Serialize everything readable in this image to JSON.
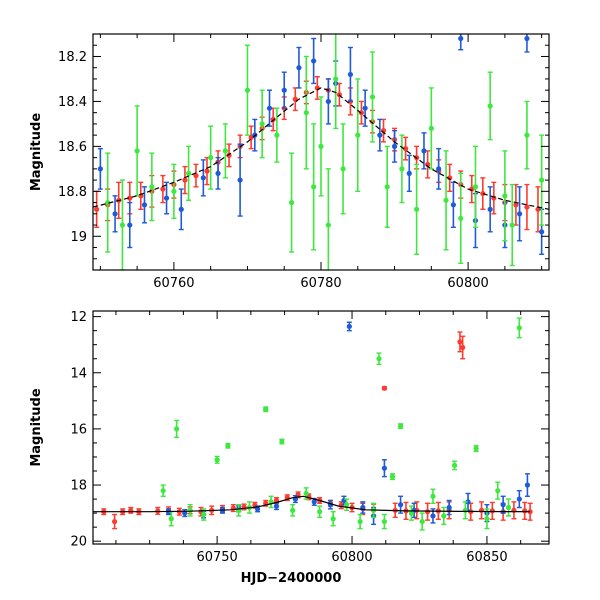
{
  "chart_data": [
    {
      "type": "scatter",
      "panel": "top",
      "xlabel": "",
      "ylabel": "Magnitude",
      "xlim": [
        60749,
        60811
      ],
      "ylim": [
        19.15,
        18.1
      ],
      "y_inverted": true,
      "x_ticks": [
        60760,
        60780,
        60800
      ],
      "x_tick_labels": [
        "60760",
        "60780",
        "60800"
      ],
      "y_ticks": [
        18.2,
        18.4,
        18.6,
        18.8,
        19.0
      ],
      "y_tick_labels": [
        "18.2",
        "18.4",
        "18.6",
        "18.8",
        "19"
      ],
      "model_curve": {
        "style": "dashed",
        "color": "#000000",
        "x": [
          60749,
          60755,
          60760,
          60765,
          60770,
          60774,
          60777,
          60780,
          60782,
          60785,
          60790,
          60795,
          60800,
          60805,
          60811
        ],
        "y": [
          18.87,
          18.82,
          18.76,
          18.69,
          18.58,
          18.47,
          18.39,
          18.34,
          18.36,
          18.44,
          18.58,
          18.7,
          18.79,
          18.84,
          18.88
        ]
      },
      "series": [
        {
          "color": "#ff3b30",
          "marker": "circle",
          "x": [
            60749.5,
            60751,
            60752.5,
            60754,
            60755.5,
            60757,
            60758.5,
            60760,
            60761.5,
            60763,
            60764.5,
            60766,
            60767.5,
            60769,
            60770.5,
            60772,
            60773.5,
            60775,
            60776.5,
            60778,
            60779.5,
            60781,
            60782.5,
            60784,
            60785.5,
            60787,
            60788.5,
            60790,
            60791.5,
            60793,
            60794.5,
            60796,
            60797.5,
            60799,
            60800.5,
            60802,
            60803.5,
            60805,
            60806.5,
            60808,
            60809.5
          ],
          "y": [
            18.88,
            18.86,
            18.84,
            18.83,
            18.82,
            18.8,
            18.79,
            18.77,
            18.75,
            18.73,
            18.71,
            18.67,
            18.64,
            18.6,
            18.56,
            18.52,
            18.48,
            18.43,
            18.39,
            18.36,
            18.34,
            18.35,
            18.37,
            18.4,
            18.45,
            18.49,
            18.53,
            18.57,
            18.61,
            18.65,
            18.68,
            18.71,
            18.74,
            18.77,
            18.79,
            18.81,
            18.83,
            18.85,
            18.86,
            18.87,
            18.88
          ],
          "err": [
            0.08,
            0.07,
            0.08,
            0.07,
            0.06,
            0.07,
            0.06,
            0.06,
            0.06,
            0.05,
            0.06,
            0.05,
            0.05,
            0.05,
            0.05,
            0.05,
            0.05,
            0.05,
            0.05,
            0.05,
            0.05,
            0.05,
            0.05,
            0.06,
            0.05,
            0.05,
            0.05,
            0.05,
            0.05,
            0.05,
            0.06,
            0.05,
            0.06,
            0.06,
            0.06,
            0.07,
            0.07,
            0.08,
            0.09,
            0.1,
            0.1
          ]
        },
        {
          "color": "#1e5bd8",
          "marker": "circle",
          "x": [
            60750,
            60752,
            60754,
            60756,
            60759,
            60761,
            60764,
            60766,
            60769,
            60771,
            60773,
            60775,
            60777,
            60779,
            60781,
            60782,
            60784,
            60786,
            60788,
            60790,
            60792,
            60794,
            60796,
            60798,
            60799,
            60801,
            60803,
            60805,
            60807,
            60808,
            60810
          ],
          "y": [
            18.7,
            18.9,
            18.95,
            18.86,
            18.83,
            18.88,
            18.74,
            18.72,
            18.75,
            18.55,
            18.43,
            18.35,
            18.25,
            18.22,
            18.4,
            18.32,
            18.28,
            18.43,
            18.55,
            18.6,
            18.72,
            18.62,
            18.7,
            18.86,
            18.12,
            18.93,
            18.88,
            18.95,
            18.9,
            18.12,
            18.98
          ],
          "err": [
            0.09,
            0.08,
            0.1,
            0.08,
            0.07,
            0.09,
            0.08,
            0.07,
            0.16,
            0.07,
            0.08,
            0.08,
            0.09,
            0.1,
            0.1,
            0.1,
            0.12,
            0.08,
            0.07,
            0.07,
            0.08,
            0.08,
            0.09,
            0.1,
            0.05,
            0.12,
            0.1,
            0.1,
            0.12,
            0.06,
            0.1
          ]
        },
        {
          "color": "#3ee83e",
          "marker": "circle",
          "x": [
            60751,
            60753,
            60755,
            60757,
            60760,
            60762,
            60765,
            60767,
            60770,
            60772,
            60774,
            60776,
            60778,
            60779,
            60780,
            60781,
            60782,
            60783,
            60785,
            60787,
            60789,
            60791,
            60793,
            60795,
            60797,
            60799,
            60801,
            60803,
            60805,
            60806,
            60808,
            60810
          ],
          "y": [
            18.85,
            18.95,
            18.62,
            18.78,
            18.8,
            18.72,
            18.65,
            18.62,
            18.35,
            18.5,
            18.55,
            18.85,
            18.45,
            18.78,
            18.6,
            18.95,
            18.3,
            18.7,
            18.55,
            18.38,
            18.78,
            18.7,
            18.88,
            18.52,
            18.84,
            18.92,
            18.78,
            18.42,
            18.82,
            18.95,
            18.55,
            18.75
          ],
          "err": [
            0.22,
            0.2,
            0.2,
            0.15,
            0.12,
            0.12,
            0.14,
            0.12,
            0.2,
            0.15,
            0.12,
            0.22,
            0.25,
            0.28,
            0.22,
            0.25,
            0.22,
            0.2,
            0.25,
            0.2,
            0.18,
            0.15,
            0.2,
            0.18,
            0.22,
            0.2,
            0.18,
            0.15,
            0.2,
            0.18,
            0.15,
            0.2
          ]
        }
      ]
    },
    {
      "type": "scatter",
      "panel": "bottom",
      "xlabel": "HJD−2400000",
      "ylabel": "Magnitude",
      "xlim": [
        60704,
        60873
      ],
      "ylim": [
        20.1,
        11.8
      ],
      "y_inverted": true,
      "x_ticks": [
        60750,
        60800,
        60850
      ],
      "x_tick_labels": [
        "60750",
        "60800",
        "60850"
      ],
      "y_ticks": [
        12,
        14,
        16,
        18,
        20
      ],
      "y_tick_labels": [
        "12",
        "14",
        "16",
        "18",
        "20"
      ],
      "model_curve": {
        "style": "solid",
        "color": "#000000",
        "x": [
          60704,
          60725,
          60740,
          60755,
          60765,
          60772,
          60778,
          60782,
          60788,
          60795,
          60805,
          60820,
          60840,
          60866
        ],
        "y": [
          18.95,
          18.95,
          18.93,
          18.88,
          18.78,
          18.62,
          18.45,
          18.4,
          18.55,
          18.75,
          18.88,
          18.92,
          18.94,
          18.95
        ]
      },
      "series": [
        {
          "color": "#ff3b30",
          "marker": "circle",
          "x": [
            60708,
            60712,
            60715,
            60718,
            60721,
            60728,
            60732,
            60736,
            60740,
            60744,
            60748,
            60752,
            60756,
            60760,
            60764,
            60768,
            60772,
            60776,
            60780,
            60784,
            60788,
            60792,
            60796,
            60800,
            60804,
            60808,
            60812,
            60816,
            60820,
            60824,
            60828,
            60832,
            60836,
            60840,
            60841,
            60844,
            60848,
            60852,
            60856,
            60860,
            60864,
            60866
          ],
          "y": [
            18.95,
            19.3,
            18.95,
            18.9,
            18.95,
            18.92,
            18.9,
            18.95,
            18.9,
            18.95,
            18.9,
            18.85,
            18.82,
            18.78,
            18.72,
            18.65,
            18.55,
            18.45,
            18.35,
            18.42,
            18.55,
            18.65,
            18.72,
            18.8,
            18.85,
            18.88,
            14.55,
            18.9,
            18.92,
            18.9,
            18.95,
            18.92,
            18.9,
            12.9,
            13.1,
            18.95,
            18.9,
            18.92,
            18.95,
            18.9,
            18.92,
            18.95
          ],
          "err": [
            0.1,
            0.25,
            0.1,
            0.1,
            0.1,
            0.12,
            0.12,
            0.12,
            0.12,
            0.15,
            0.15,
            0.12,
            0.12,
            0.1,
            0.1,
            0.1,
            0.1,
            0.1,
            0.1,
            0.1,
            0.1,
            0.1,
            0.12,
            0.15,
            0.2,
            0.2,
            0.05,
            0.25,
            0.3,
            0.3,
            0.3,
            0.3,
            0.3,
            0.35,
            0.4,
            0.3,
            0.3,
            0.3,
            0.3,
            0.3,
            0.3,
            0.3
          ]
        },
        {
          "color": "#1e5bd8",
          "marker": "circle",
          "x": [
            60732,
            60738,
            60745,
            60752,
            60758,
            60765,
            60772,
            60779,
            60786,
            60792,
            60797,
            60799,
            60804,
            60808,
            60812,
            60818,
            60823,
            60830,
            60836,
            60843,
            60850,
            60856,
            60862,
            60865
          ],
          "y": [
            18.95,
            19.0,
            19.05,
            18.9,
            18.85,
            18.85,
            18.75,
            18.5,
            18.6,
            18.7,
            18.55,
            12.35,
            18.8,
            19.1,
            17.4,
            18.7,
            18.9,
            19.1,
            18.8,
            18.6,
            19.0,
            18.7,
            18.5,
            18.0
          ],
          "err": [
            0.1,
            0.12,
            0.12,
            0.1,
            0.1,
            0.1,
            0.12,
            0.12,
            0.12,
            0.15,
            0.15,
            0.15,
            0.2,
            0.3,
            0.3,
            0.3,
            0.25,
            0.25,
            0.25,
            0.3,
            0.3,
            0.3,
            0.3,
            0.4
          ]
        },
        {
          "color": "#3ee83e",
          "marker": "circle",
          "x": [
            60730,
            60733,
            60735,
            60740,
            60745,
            60750,
            60754,
            60758,
            60762,
            60768,
            60770,
            60774,
            60778,
            60783,
            60788,
            60793,
            60798,
            60803,
            60808,
            60810,
            60812,
            60815,
            60818,
            60822,
            60826,
            60830,
            60834,
            60838,
            60842,
            60846,
            60850,
            60854,
            60858,
            60862
          ],
          "y": [
            18.2,
            19.2,
            16.0,
            18.9,
            19.05,
            17.1,
            16.6,
            18.9,
            18.8,
            15.3,
            18.6,
            16.45,
            18.9,
            18.3,
            18.95,
            19.2,
            18.7,
            19.3,
            18.9,
            13.5,
            19.3,
            17.7,
            15.9,
            19.0,
            19.3,
            18.4,
            19.1,
            17.3,
            18.9,
            16.7,
            19.2,
            18.2,
            18.8,
            12.4
          ],
          "err": [
            0.2,
            0.25,
            0.3,
            0.2,
            0.2,
            0.12,
            0.08,
            0.2,
            0.2,
            0.08,
            0.2,
            0.08,
            0.2,
            0.2,
            0.2,
            0.25,
            0.2,
            0.25,
            0.25,
            0.2,
            0.25,
            0.1,
            0.08,
            0.25,
            0.3,
            0.25,
            0.3,
            0.15,
            0.3,
            0.1,
            0.35,
            0.3,
            0.3,
            0.35
          ]
        }
      ]
    }
  ]
}
